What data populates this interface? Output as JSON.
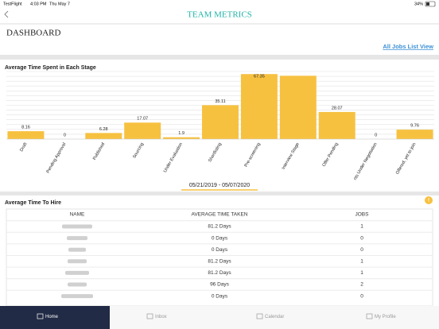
{
  "status_bar": {
    "app": "TestFlight",
    "time": "4:03 PM",
    "date": "Thu May 7",
    "battery": "34%"
  },
  "header": {
    "title": "TEAM METRICS"
  },
  "page": {
    "title": "DASHBOARD",
    "link": "All Jobs List View"
  },
  "chart_data": {
    "type": "bar",
    "title": "Average Time Spent in Each Stage",
    "categories": [
      "Draft",
      "Pending Approval",
      "Published",
      "Sourcing",
      "Under Evaluation",
      "Shortlisting",
      "Pre-screening",
      "Interview Stage",
      "Offer Pending",
      "nts Under Negotiation",
      "Offered, yet to join"
    ],
    "values": [
      8.16,
      0,
      6.28,
      17.07,
      1.9,
      35.11,
      67.35,
      65.6,
      28.07,
      0,
      9.76
    ],
    "value_labels": [
      "8.16",
      "0",
      "6.28",
      "17.07",
      "1.9",
      "35.11",
      "67.35",
      null,
      "28.07",
      "0",
      "9.76"
    ],
    "color": "#f7c140",
    "ylim": [
      0,
      70
    ],
    "yticks": [
      0,
      5,
      10,
      15,
      20,
      25,
      30,
      35,
      40,
      45,
      50,
      55,
      60,
      65,
      70
    ],
    "grid": true,
    "date_range": "05/21/2019 - 05/07/2020"
  },
  "hire_table": {
    "title": "Average Time To Hire",
    "columns": [
      "NAME",
      "AVERAGE TIME TAKEN",
      "JOBS"
    ],
    "rows": [
      [
        "81.2 Days",
        1
      ],
      [
        "0 Days",
        0
      ],
      [
        "0 Days",
        0
      ],
      [
        "81.2 Days",
        1
      ],
      [
        "81.2 Days",
        1
      ],
      [
        "96 Days",
        2
      ],
      [
        "0 Days",
        0
      ]
    ]
  },
  "tabs": [
    "Home",
    "Inbox",
    "Calendar",
    "My Profile"
  ]
}
